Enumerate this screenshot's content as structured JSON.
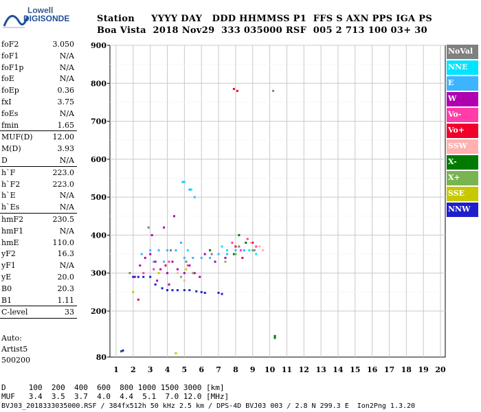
{
  "logo": {
    "line1": "Lowell",
    "line2": "DIGISONDE"
  },
  "header": {
    "labels": "Station     YYYY DAY   DDD HHMMSS P1  FFS S AXN PPS IGA PS",
    "values": "Boa Vista  2018 Nov29  333 035000 RSF  005 2 713 100 03+ 30"
  },
  "params": [
    {
      "label": "foF2",
      "value": "3.050"
    },
    {
      "label": "foF1",
      "value": "N/A"
    },
    {
      "label": "foF1p",
      "value": "N/A"
    },
    {
      "label": "foE",
      "value": "N/A"
    },
    {
      "label": "foEp",
      "value": "0.36"
    },
    {
      "label": "fxI",
      "value": "3.75"
    },
    {
      "label": "foEs",
      "value": "N/A"
    },
    {
      "label": "fmin",
      "value": "1.65"
    },
    {
      "label": "MUF(D)",
      "value": "12.00"
    },
    {
      "label": "M(D)",
      "value": "3.93"
    },
    {
      "label": "D",
      "value": "N/A"
    },
    {
      "label": "h`F",
      "value": "223.0"
    },
    {
      "label": "h`F2",
      "value": "223.0"
    },
    {
      "label": "h`E",
      "value": "N/A"
    },
    {
      "label": "h`Es",
      "value": "N/A"
    },
    {
      "label": "hmF2",
      "value": "230.5"
    },
    {
      "label": "hmF1",
      "value": "N/A"
    },
    {
      "label": "hmE",
      "value": "110.0"
    },
    {
      "label": "yF2",
      "value": "16.3"
    },
    {
      "label": "yF1",
      "value": "N/A"
    },
    {
      "label": "yE",
      "value": "20.0"
    },
    {
      "label": "B0",
      "value": "20.3"
    },
    {
      "label": "B1",
      "value": "1.11"
    },
    {
      "label": "C-level",
      "value": "33"
    }
  ],
  "auto": {
    "line1": "Auto:",
    "line2": "Artist5",
    "line3": "500200"
  },
  "legend": [
    {
      "label": "NoVal",
      "color": "#808080"
    },
    {
      "label": "NNE",
      "color": "#00e5ff"
    },
    {
      "label": "E",
      "color": "#3cb4ff"
    },
    {
      "label": "W",
      "color": "#b000b0"
    },
    {
      "label": "Vo-",
      "color": "#ff3caa"
    },
    {
      "label": "Vo+",
      "color": "#f0002a"
    },
    {
      "label": "SSW",
      "color": "#ffb0b0"
    },
    {
      "label": "X-",
      "color": "#007a00"
    },
    {
      "label": "X+",
      "color": "#78b450"
    },
    {
      "label": "SSE",
      "color": "#c8c800"
    },
    {
      "label": "NNW",
      "color": "#1e1ecc"
    }
  ],
  "distance_table": {
    "row1": "D     100  200  400  600  800 1000 1500 3000 [km]",
    "row2": "MUF   3.4  3.5  3.7  4.0  4.4  5.1  7.0 12.0 [MHz]"
  },
  "footer": "BVJ03_2018333035000.RSF / 384fx512h 50 kHz 2.5 km / DPS-4D BVJ03 003 / 2.8 N 299.3 E  Ion2Png 1.3.20",
  "chart_data": {
    "type": "scatter",
    "title": "",
    "xlabel": "",
    "ylabel": "",
    "xlim": [
      0.6,
      20.2
    ],
    "ylim": [
      80,
      900
    ],
    "xticks": [
      1,
      2,
      3,
      4,
      5,
      6,
      7,
      8,
      9,
      10,
      11,
      12,
      13,
      14,
      15,
      16,
      17,
      18,
      19,
      20
    ],
    "yticks": [
      80,
      200,
      300,
      400,
      500,
      600,
      700,
      800,
      900
    ],
    "grid": true,
    "series": [
      {
        "name": "NoVal",
        "color": "#808080",
        "points": [
          [
            1.8,
            300
          ],
          [
            2.9,
            420
          ],
          [
            4.2,
            360
          ],
          [
            5.1,
            330
          ],
          [
            6.6,
            350
          ],
          [
            8.2,
            370
          ],
          [
            9.1,
            360
          ],
          [
            10.2,
            780
          ]
        ]
      },
      {
        "name": "NNE",
        "color": "#00e5ff",
        "points": [
          [
            5.0,
            540
          ],
          [
            5.4,
            520
          ],
          [
            8.5,
            360
          ],
          [
            8.8,
            360
          ],
          [
            9.2,
            350
          ],
          [
            7.2,
            370
          ],
          [
            7.5,
            360
          ],
          [
            5.2,
            360
          ]
        ]
      },
      {
        "name": "E",
        "color": "#3cb4ff",
        "points": [
          [
            2.5,
            350
          ],
          [
            3.0,
            360
          ],
          [
            3.5,
            360
          ],
          [
            4.0,
            360
          ],
          [
            4.5,
            360
          ],
          [
            5.0,
            340
          ],
          [
            5.5,
            340
          ],
          [
            6.0,
            340
          ],
          [
            6.5,
            340
          ],
          [
            7.0,
            350
          ],
          [
            7.5,
            350
          ],
          [
            8.0,
            360
          ],
          [
            8.5,
            360
          ],
          [
            9.0,
            360
          ],
          [
            3.2,
            330
          ],
          [
            3.8,
            330
          ],
          [
            4.8,
            380
          ],
          [
            5.3,
            520
          ],
          [
            4.9,
            540
          ],
          [
            5.6,
            500
          ]
        ]
      },
      {
        "name": "W",
        "color": "#b000b0",
        "points": [
          [
            2.1,
            290
          ],
          [
            2.4,
            320
          ],
          [
            2.7,
            340
          ],
          [
            3.0,
            350
          ],
          [
            3.3,
            330
          ],
          [
            3.6,
            310
          ],
          [
            4.0,
            300
          ],
          [
            4.3,
            330
          ],
          [
            4.6,
            310
          ],
          [
            5.0,
            300
          ],
          [
            5.3,
            320
          ],
          [
            5.6,
            300
          ],
          [
            5.9,
            290
          ],
          [
            6.2,
            350
          ],
          [
            6.8,
            330
          ],
          [
            7.4,
            340
          ],
          [
            3.1,
            400
          ],
          [
            3.8,
            420
          ],
          [
            4.4,
            450
          ],
          [
            3.4,
            280
          ],
          [
            4.1,
            270
          ]
        ]
      },
      {
        "name": "Vo-",
        "color": "#ff3caa",
        "points": [
          [
            2.6,
            300
          ],
          [
            3.2,
            310
          ],
          [
            4.1,
            330
          ],
          [
            5.2,
            320
          ],
          [
            8.3,
            360
          ],
          [
            9.2,
            370
          ],
          [
            8.7,
            390
          ],
          [
            7.8,
            380
          ]
        ]
      },
      {
        "name": "Vo+",
        "color": "#f0002a",
        "points": [
          [
            8.0,
            370
          ],
          [
            8.4,
            340
          ],
          [
            9.0,
            380
          ],
          [
            8.1,
            780
          ],
          [
            7.9,
            785
          ],
          [
            2.3,
            230
          ],
          [
            3.9,
            320
          ]
        ]
      },
      {
        "name": "SSW",
        "color": "#ffb0b0",
        "points": [
          [
            8.9,
            380
          ],
          [
            9.4,
            370
          ],
          [
            9.6,
            360
          ],
          [
            5.0,
            280
          ],
          [
            4.6,
            300
          ]
        ]
      },
      {
        "name": "X-",
        "color": "#007a00",
        "points": [
          [
            7.9,
            350
          ],
          [
            8.2,
            400
          ],
          [
            8.6,
            380
          ],
          [
            6.5,
            360
          ],
          [
            10.3,
            130
          ],
          [
            10.3,
            135
          ],
          [
            1.3,
            95
          ]
        ]
      },
      {
        "name": "X+",
        "color": "#78b450",
        "points": [
          [
            7.4,
            330
          ],
          [
            8.0,
            350
          ],
          [
            9.0,
            360
          ],
          [
            4.8,
            290
          ],
          [
            5.5,
            300
          ]
        ]
      },
      {
        "name": "SSE",
        "color": "#c8c800",
        "points": [
          [
            2.0,
            250
          ],
          [
            3.5,
            300
          ],
          [
            4.5,
            90
          ],
          [
            5.1,
            310
          ]
        ]
      },
      {
        "name": "NNW",
        "color": "#1e1ecc",
        "points": [
          [
            2.0,
            290
          ],
          [
            2.3,
            290
          ],
          [
            2.6,
            290
          ],
          [
            3.0,
            290
          ],
          [
            3.3,
            270
          ],
          [
            3.7,
            260
          ],
          [
            4.0,
            255
          ],
          [
            4.3,
            255
          ],
          [
            4.6,
            255
          ],
          [
            5.0,
            255
          ],
          [
            5.3,
            255
          ],
          [
            5.7,
            252
          ],
          [
            6.0,
            250
          ],
          [
            6.2,
            248
          ],
          [
            7.2,
            245
          ],
          [
            7.0,
            248
          ],
          [
            1.4,
            97
          ]
        ]
      }
    ]
  }
}
